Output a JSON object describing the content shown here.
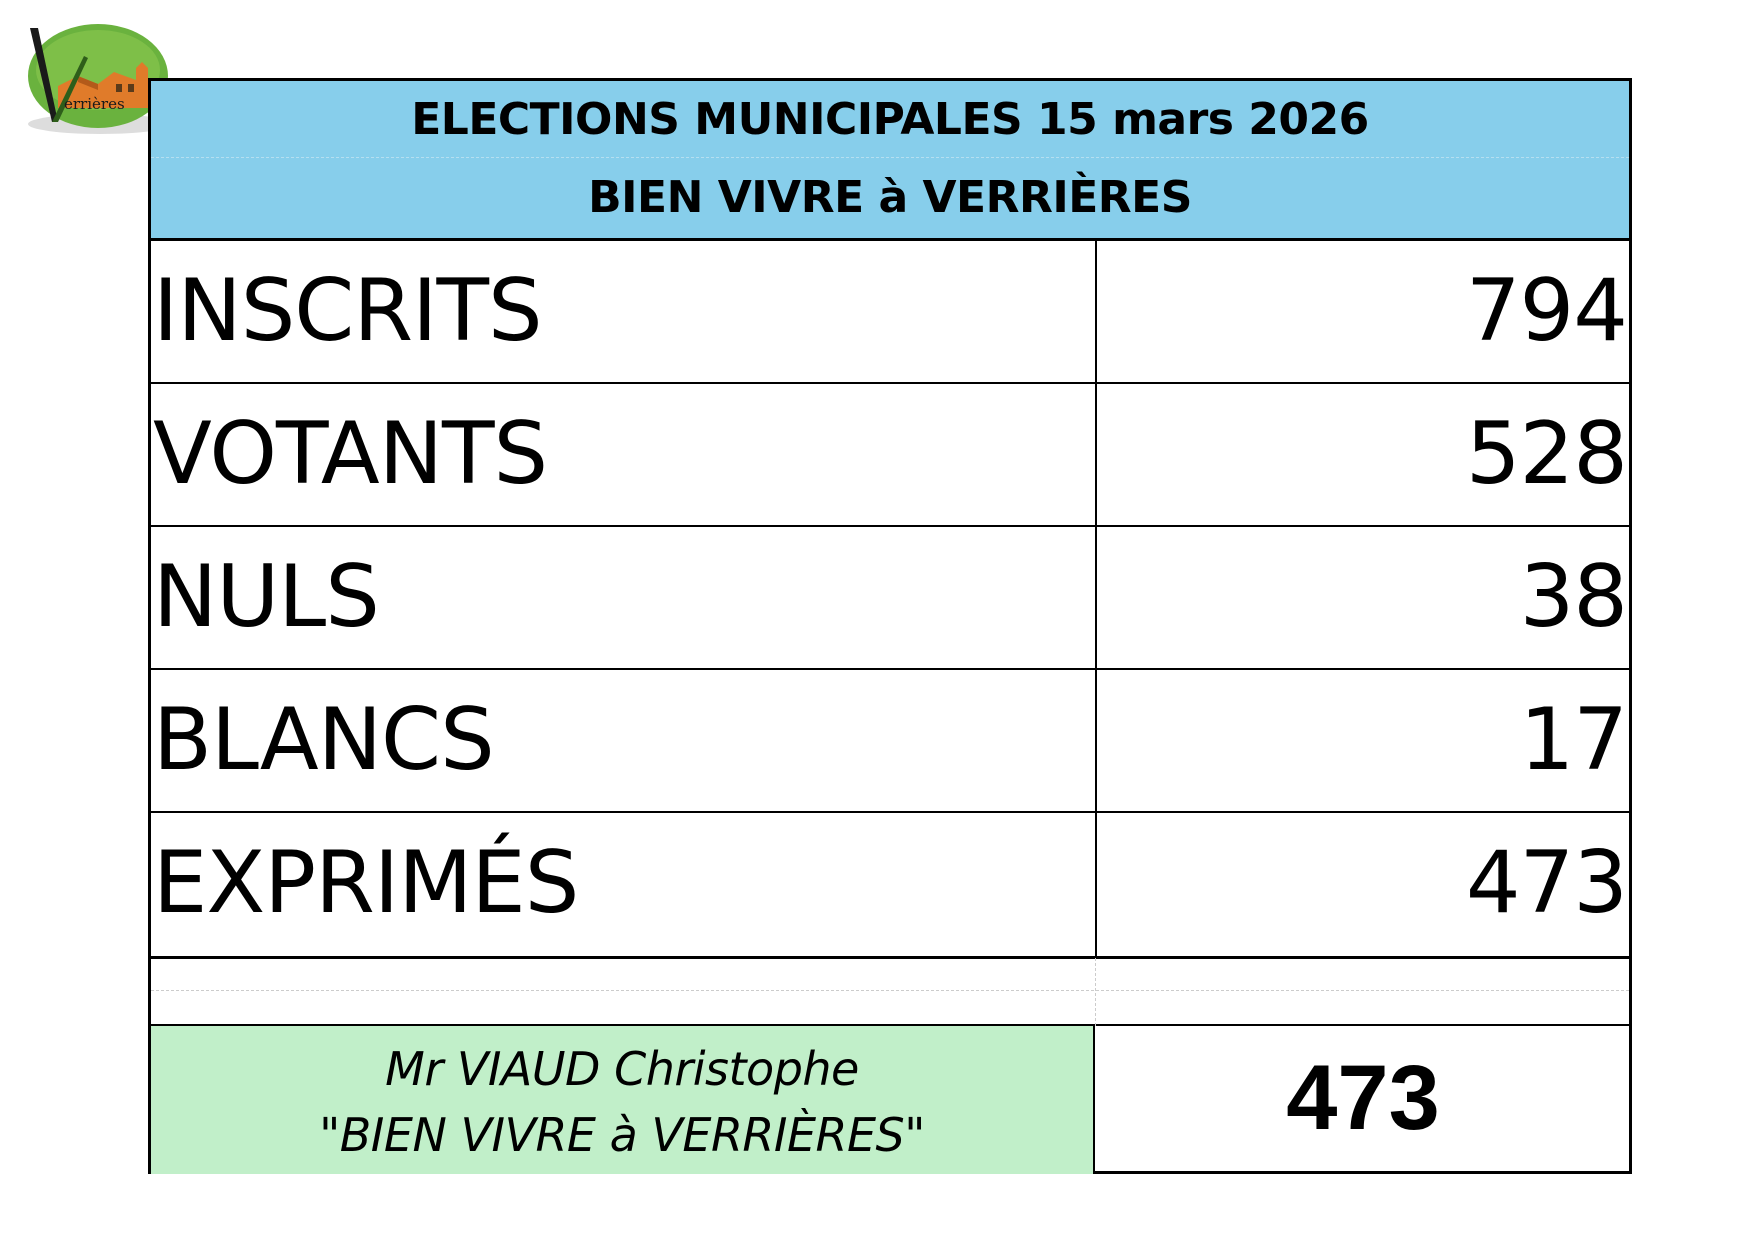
{
  "logo": {
    "text": "errières",
    "icon": "verrieres-village-logo-icon",
    "colors": {
      "green": "#6ab23e",
      "orange": "#e07b2a",
      "dark": "#222222"
    }
  },
  "header": {
    "title": "ELECTIONS MUNICIPALES 15 mars 2026",
    "subtitle": "BIEN VIVRE à VERRIÈRES",
    "background": "#87ceeb"
  },
  "results": [
    {
      "label": "INSCRITS",
      "value": "794"
    },
    {
      "label": "VOTANTS",
      "value": "528"
    },
    {
      "label": "NULS",
      "value": "38"
    },
    {
      "label": "BLANCS",
      "value": "17"
    },
    {
      "label": "EXPRIMÉS",
      "value": "473"
    }
  ],
  "candidate": {
    "name": "Mr VIAUD Christophe",
    "list": "\"BIEN VIVRE à VERRIÈRES\"",
    "votes": "473",
    "background": "#c1efc9"
  }
}
